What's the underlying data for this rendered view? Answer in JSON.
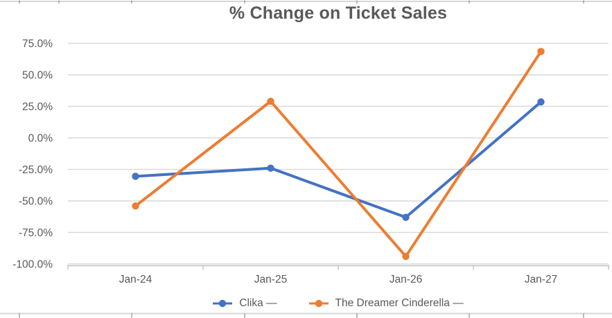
{
  "chart_data": {
    "type": "line",
    "title": "% Change on Ticket Sales",
    "categories": [
      "Jan-24",
      "Jan-25",
      "Jan-26",
      "Jan-27"
    ],
    "series": [
      {
        "name": "Clika —",
        "color": "#4472C4",
        "values": [
          -30.5,
          -24,
          -63,
          28.5
        ]
      },
      {
        "name": "The Dreamer Cinderella —",
        "color": "#ED7D31",
        "values": [
          -54,
          29,
          -94,
          68.5
        ]
      }
    ],
    "y_ticks": [
      "75.0%",
      "50.0%",
      "25.0%",
      "0.0%",
      "-25.0%",
      "-50.0%",
      "-75.0%",
      "-100.0%"
    ],
    "y_tick_values": [
      75,
      50,
      25,
      0,
      -25,
      -50,
      -75,
      -100
    ],
    "ylim": [
      -100,
      75
    ],
    "grid": true,
    "legend_position": "bottom",
    "marker": "circle"
  },
  "colors": {
    "text": "#595959",
    "gridline": "#D9D9D9",
    "axis": "#BFBFBF",
    "sheet_border": "#D6D6D6",
    "sheet_tick": "#9F9F9F",
    "background": "#FFFFFF"
  }
}
